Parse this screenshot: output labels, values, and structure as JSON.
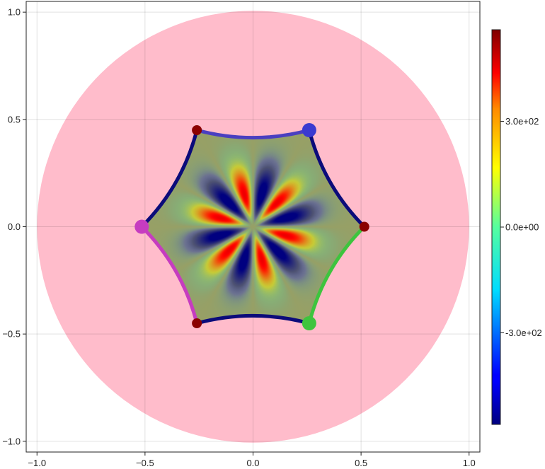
{
  "chart_data": {
    "type": "heatmap",
    "title": "",
    "xlabel": "",
    "ylabel": "",
    "xlim": [
      -1.05,
      1.05
    ],
    "ylim": [
      -1.05,
      1.05
    ],
    "grid": true,
    "x_ticks": [
      {
        "value": -1.0,
        "label": "−1.0"
      },
      {
        "value": -0.5,
        "label": "−0.5"
      },
      {
        "value": 0.0,
        "label": "0.0"
      },
      {
        "value": 0.5,
        "label": "0.5"
      },
      {
        "value": 1.0,
        "label": "1.0"
      }
    ],
    "y_ticks": [
      {
        "value": 1.0,
        "label": "1.0"
      },
      {
        "value": 0.5,
        "label": "0.5"
      },
      {
        "value": 0.0,
        "label": "0.0"
      },
      {
        "value": -0.5,
        "label": "−0.5"
      },
      {
        "value": -1.0,
        "label": "−1.0"
      }
    ],
    "disk": {
      "center": [
        0,
        0
      ],
      "radius": 1.0,
      "color": "#ffbccb"
    },
    "field": {
      "description_values": "six-lobed pattern, red (max) and purple (min) lobes alternating around the origin",
      "lobes": 6,
      "background_color": "#97a066"
    },
    "hexagon": {
      "vertices": [
        [
          0.515,
          0.0
        ],
        [
          0.26,
          0.45
        ],
        [
          -0.26,
          0.45
        ],
        [
          -0.515,
          0.0
        ],
        [
          -0.26,
          -0.45
        ],
        [
          0.26,
          -0.45
        ]
      ],
      "edge_sag": 0.035
    },
    "edges": [
      {
        "from": 0,
        "to": 1,
        "color": "#0b0b7a"
      },
      {
        "from": 1,
        "to": 2,
        "color": "#4a3fc0"
      },
      {
        "from": 2,
        "to": 3,
        "color": "#0b0b7a"
      },
      {
        "from": 3,
        "to": 4,
        "color": "#c63cc0"
      },
      {
        "from": 4,
        "to": 5,
        "color": "#0b0b7a"
      },
      {
        "from": 5,
        "to": 0,
        "color": "#3ec43e"
      }
    ],
    "vertex_markers": [
      {
        "x": 0.515,
        "y": 0.0,
        "color": "#8b0000",
        "size": "small"
      },
      {
        "x": 0.26,
        "y": 0.45,
        "color": "#3a3ad0",
        "size": "large"
      },
      {
        "x": -0.26,
        "y": 0.45,
        "color": "#8b0000",
        "size": "small"
      },
      {
        "x": -0.515,
        "y": 0.0,
        "color": "#c63cc0",
        "size": "large"
      },
      {
        "x": -0.26,
        "y": -0.45,
        "color": "#8b0000",
        "size": "small"
      },
      {
        "x": 0.26,
        "y": -0.45,
        "color": "#3ec43e",
        "size": "large"
      }
    ],
    "colorbar": {
      "colormap": "jet",
      "range": [
        -560,
        560
      ],
      "ticks": [
        {
          "value": 300,
          "label": "3.0e+02"
        },
        {
          "value": 0,
          "label": "0.0e+00"
        },
        {
          "value": -300,
          "label": "-3.0e+02"
        }
      ]
    }
  }
}
